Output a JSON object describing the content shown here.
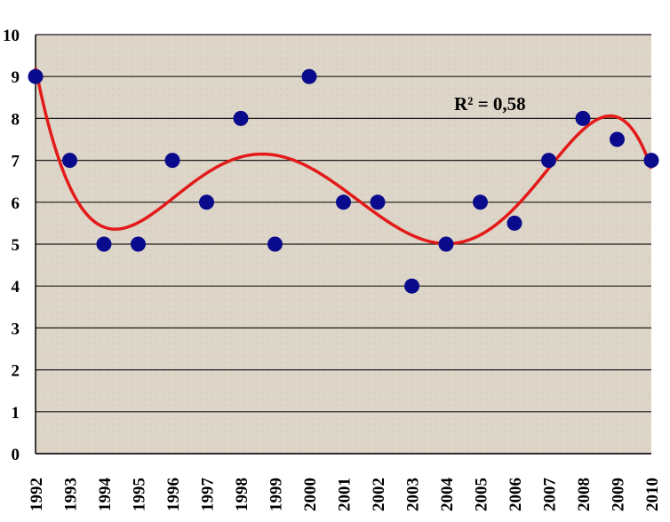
{
  "chart_data": {
    "type": "scatter",
    "x": [
      "1992",
      "1993",
      "1994",
      "1995",
      "1996",
      "1997",
      "1998",
      "1999",
      "2000",
      "2001",
      "2002",
      "2003",
      "2004",
      "2005",
      "2006",
      "2007",
      "2008",
      "2009",
      "2010"
    ],
    "y": [
      9,
      7,
      5,
      5,
      7,
      6,
      8,
      5,
      9,
      6,
      6,
      4,
      5,
      6,
      5.5,
      7,
      8,
      7.5,
      7
    ],
    "ylim": [
      0,
      10
    ],
    "yticks": [
      0,
      1,
      2,
      3,
      4,
      5,
      6,
      7,
      8,
      9,
      10
    ],
    "grid": true,
    "trendline": {
      "type": "polynomial",
      "r2_label": "R² = 0,58",
      "color": "#e31a1a"
    },
    "point_color": "#0a0a8c",
    "plot_background": "#ddd5c7",
    "gridline_color": "#1a1a1a"
  }
}
